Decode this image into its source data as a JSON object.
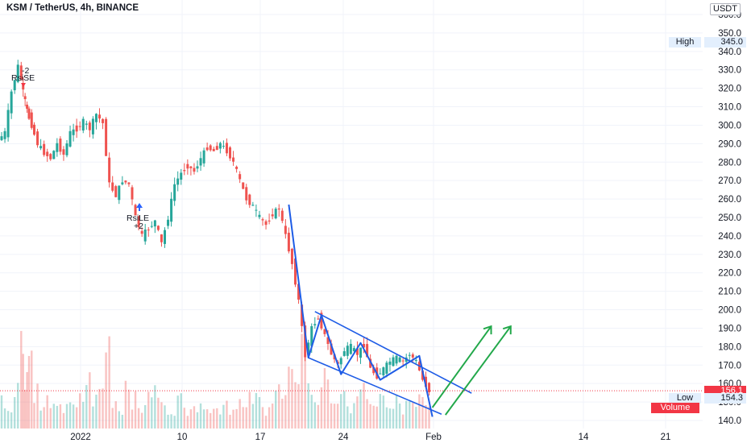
{
  "header": {
    "symbol_title": "KSM / TetherUS, 4h, BINANCE"
  },
  "price_axis": {
    "unit": "USDT",
    "ticks": [
      360,
      350,
      340,
      330,
      320,
      310,
      300,
      290,
      280,
      270,
      260,
      250,
      240,
      230,
      220,
      210,
      200,
      190,
      180,
      170,
      160,
      150,
      140
    ],
    "tick_labels": [
      "360.0",
      "350.0",
      "340.0",
      "330.0",
      "320.0",
      "310.0",
      "300.0",
      "290.0",
      "280.0",
      "270.0",
      "260.0",
      "250.0",
      "240.0",
      "230.0",
      "220.0",
      "210.0",
      "200.0",
      "190.0",
      "180.0",
      "170.0",
      "160.0",
      "150.0",
      "140.0"
    ],
    "range": [
      137,
      362
    ],
    "high_label": "High",
    "high_value": "345.0",
    "low_label": "Low",
    "low_value": "154.3",
    "last_price": "156.1",
    "volume_label": "Volume"
  },
  "time_axis": {
    "labels": [
      "2022",
      "10",
      "17",
      "24",
      "Feb",
      "14",
      "21"
    ]
  },
  "colors": {
    "up": "#26a69a",
    "down": "#ef5350",
    "channel": "#1e5ce6",
    "projection": "#22a84a",
    "last_price": "#f23645",
    "label_bg": "#e3effd"
  },
  "annotations": {
    "short_signal": {
      "label": "RsiSE",
      "qty": "-2"
    },
    "long_signal": {
      "label": "RsiLE",
      "qty": "+2"
    }
  },
  "chart_data": {
    "type": "candlestick",
    "title": "KSM / TetherUS, 4h, BINANCE",
    "x_axis_labels": [
      "2022",
      "10",
      "17",
      "24",
      "Feb",
      "14",
      "21"
    ],
    "y_unit": "USDT",
    "ylim": [
      137,
      362
    ],
    "high": 345.0,
    "low": 154.3,
    "last": 156.1,
    "price_path": [
      [
        0,
        292
      ],
      [
        1,
        296
      ],
      [
        2,
        318
      ],
      [
        3,
        332
      ],
      [
        3.6,
        318
      ],
      [
        4.2,
        308
      ],
      [
        5,
        300
      ],
      [
        6,
        290
      ],
      [
        7,
        285
      ],
      [
        8,
        282
      ],
      [
        9,
        290
      ],
      [
        10,
        284
      ],
      [
        11,
        296
      ],
      [
        12,
        298
      ],
      [
        13,
        302
      ],
      [
        14,
        298
      ],
      [
        15,
        306
      ],
      [
        16,
        301
      ],
      [
        17,
        268
      ],
      [
        18,
        262
      ],
      [
        19,
        270
      ],
      [
        20,
        268
      ],
      [
        21,
        250
      ],
      [
        22,
        240
      ],
      [
        23,
        244
      ],
      [
        24,
        248
      ],
      [
        25,
        236
      ],
      [
        26,
        250
      ],
      [
        27,
        268
      ],
      [
        28,
        274
      ],
      [
        29,
        278
      ],
      [
        30,
        275
      ],
      [
        31,
        282
      ],
      [
        32,
        288
      ],
      [
        33,
        286
      ],
      [
        34,
        290
      ],
      [
        35,
        286
      ],
      [
        36,
        280
      ],
      [
        37,
        270
      ],
      [
        38,
        260
      ],
      [
        39,
        256
      ],
      [
        40,
        250
      ],
      [
        41,
        246
      ],
      [
        42,
        252
      ],
      [
        43,
        255
      ],
      [
        44,
        240
      ],
      [
        45,
        225
      ],
      [
        46,
        205
      ],
      [
        47,
        175
      ],
      [
        48,
        190
      ],
      [
        49,
        196
      ],
      [
        50,
        186
      ],
      [
        51,
        176
      ],
      [
        52,
        170
      ],
      [
        53,
        178
      ],
      [
        54,
        180
      ],
      [
        55,
        176
      ],
      [
        56,
        181
      ],
      [
        57,
        168
      ],
      [
        58,
        164
      ],
      [
        59,
        168
      ],
      [
        60,
        172
      ],
      [
        61,
        174
      ],
      [
        62,
        172
      ],
      [
        63,
        176
      ],
      [
        64,
        172
      ],
      [
        65,
        162
      ],
      [
        66,
        156
      ]
    ],
    "volume_relative": [
      0.3,
      0.2,
      0.5,
      0.9,
      0.6,
      0.8,
      0.4,
      0.2,
      0.3,
      0.2,
      0.2,
      0.3,
      0.2,
      0.3,
      0.5,
      0.3,
      0.4,
      0.9,
      0.3,
      0.2,
      0.5,
      0.3,
      0.2,
      0.3,
      0.4,
      0.3,
      0.2,
      0.2,
      0.3,
      0.2,
      0.3,
      0.2,
      0.3,
      0.2,
      0.2,
      0.3,
      0.2,
      0.3,
      0.2,
      0.3,
      0.3,
      0.2,
      0.3,
      0.4,
      0.3,
      0.5,
      0.6,
      0.9,
      0.4,
      0.3,
      0.5,
      0.4,
      0.3,
      0.3,
      0.2,
      0.3,
      0.4,
      0.3,
      0.2,
      0.3,
      0.2,
      0.3,
      0.2,
      0.3,
      0.3,
      0.4,
      0.3
    ],
    "drawings": {
      "descending_channel_upper": [
        [
          48,
          199
        ],
        [
          67,
          164
        ]
      ],
      "descending_channel_lower": [
        [
          47,
          174
        ],
        [
          69,
          141
        ]
      ],
      "channel_zigzag": [
        [
          44,
          257
        ],
        [
          47,
          174
        ],
        [
          49,
          197
        ],
        [
          52,
          165
        ],
        [
          55,
          182
        ],
        [
          58,
          162
        ],
        [
          64,
          175
        ],
        [
          66,
          142
        ]
      ],
      "projection_arrow_1": [
        [
          66,
          147
        ],
        [
          75,
          191
        ]
      ],
      "projection_arrow_2": [
        [
          68,
          143
        ],
        [
          78,
          191
        ]
      ]
    }
  }
}
